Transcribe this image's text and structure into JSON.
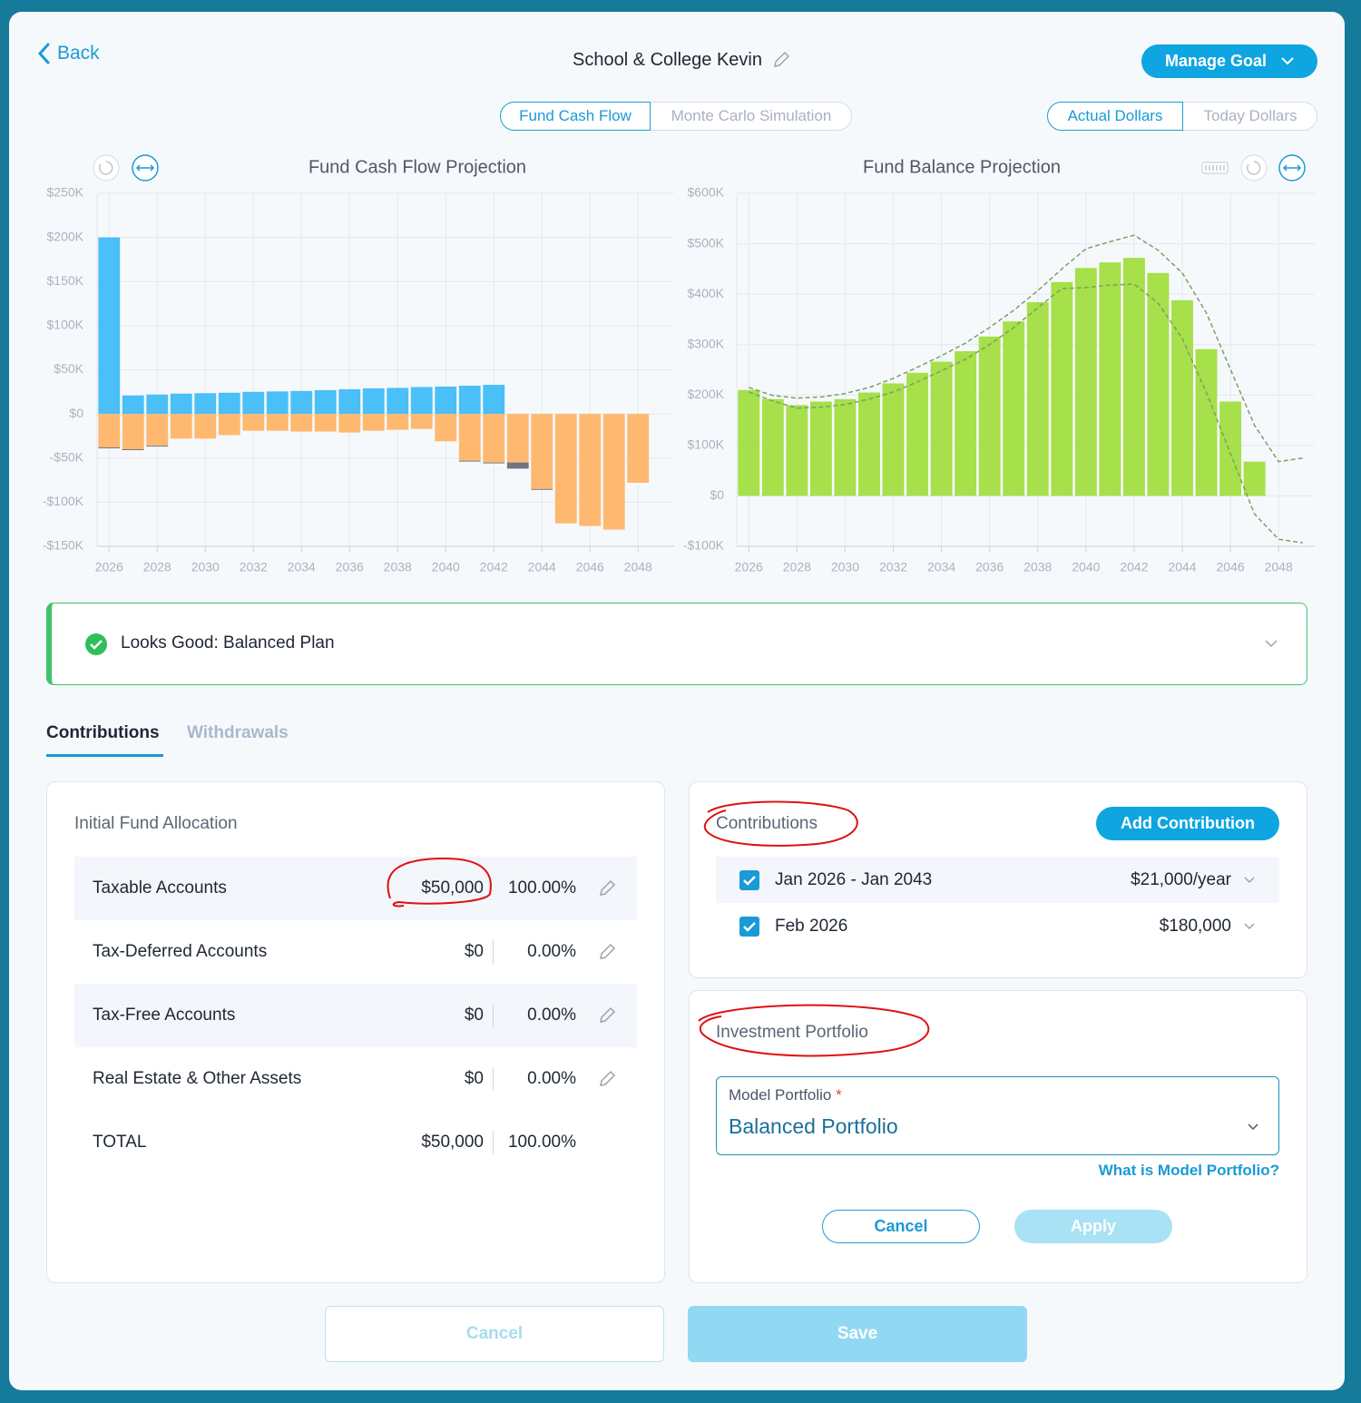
{
  "header": {
    "back": "Back",
    "title": "School & College Kevin",
    "manage": "Manage Goal"
  },
  "view_toggle": [
    "Fund Cash Flow",
    "Monte Carlo Simulation"
  ],
  "dollar_toggle": [
    "Actual Dollars",
    "Today Dollars"
  ],
  "chart_data": [
    {
      "type": "bar",
      "stacked": true,
      "title": "Fund Cash Flow Projection",
      "x": [
        2026,
        2027,
        2028,
        2029,
        2030,
        2031,
        2032,
        2033,
        2034,
        2035,
        2036,
        2037,
        2038,
        2039,
        2040,
        2041,
        2042,
        2043,
        2044,
        2045,
        2046,
        2047,
        2048
      ],
      "series": [
        {
          "color": "#4bbff7",
          "values": [
            200,
            21,
            22,
            23,
            23.5,
            24,
            25,
            25.5,
            26,
            27,
            28,
            29,
            29.5,
            30.5,
            31,
            32,
            33,
            0,
            0,
            0,
            0,
            0,
            0
          ]
        },
        {
          "color": "#ffb870",
          "values": [
            -38,
            -40,
            -36,
            -28,
            -28,
            -24,
            -19,
            -19,
            -20,
            -20,
            -21,
            -19,
            -18,
            -17,
            -31,
            -53,
            -55,
            -55,
            -85,
            -124,
            -127,
            -131,
            -78
          ]
        },
        {
          "color": "#6f7482",
          "values": [
            -1,
            -1,
            -1,
            0,
            0,
            0,
            0,
            0,
            0,
            0,
            0,
            0,
            0,
            0,
            0,
            -1,
            -1,
            -7,
            -1,
            0,
            0,
            0,
            0
          ]
        }
      ],
      "xlim": [
        2025.5,
        2049.5
      ],
      "xticks": [
        2026,
        2028,
        2030,
        2032,
        2034,
        2036,
        2038,
        2040,
        2042,
        2044,
        2046,
        2048
      ],
      "ylim": [
        -150,
        250
      ],
      "yticks": [
        {
          "value": -150,
          "label": "-$150K"
        },
        {
          "value": -100,
          "label": "-$100K"
        },
        {
          "value": -50,
          "label": "-$50K"
        },
        {
          "value": 0,
          "label": "$0"
        },
        {
          "value": 50,
          "label": "$50K"
        },
        {
          "value": 100,
          "label": "$100K"
        },
        {
          "value": 150,
          "label": "$150K"
        },
        {
          "value": 200,
          "label": "$200K"
        },
        {
          "value": 250,
          "label": "$250K"
        }
      ],
      "grid": true
    },
    {
      "type": "combo",
      "title": "Fund Balance Projection",
      "series": [
        {
          "type": "bar",
          "color": "#a6e04a",
          "x": [
            2026,
            2027,
            2028,
            2029,
            2030,
            2031,
            2032,
            2033,
            2034,
            2035,
            2036,
            2037,
            2038,
            2039,
            2040,
            2041,
            2042,
            2043,
            2044,
            2045,
            2046,
            2047
          ],
          "values": [
            210,
            192,
            180,
            187,
            192,
            205,
            223,
            244,
            266,
            287,
            316,
            346,
            384,
            424,
            452,
            463,
            472,
            442,
            388,
            291,
            187,
            68
          ]
        },
        {
          "type": "line",
          "dashed": true,
          "color": "#7f9f63",
          "x": [
            2026,
            2027,
            2028,
            2029,
            2030,
            2031,
            2032,
            2033,
            2034,
            2035,
            2036,
            2037,
            2038,
            2039,
            2040,
            2041,
            2042,
            2043,
            2044,
            2045,
            2046,
            2047,
            2048,
            2049
          ],
          "values": [
            215,
            199,
            194,
            196,
            203,
            215,
            233,
            255,
            278,
            303,
            334,
            368,
            407,
            450,
            490,
            504,
            517,
            487,
            442,
            363,
            251,
            140,
            68,
            75
          ]
        },
        {
          "type": "line",
          "dashed": true,
          "color": "#7f9f63",
          "x": [
            2026,
            2027,
            2028,
            2029,
            2030,
            2031,
            2032,
            2033,
            2034,
            2035,
            2036,
            2037,
            2038,
            2039,
            2040,
            2041,
            2042,
            2043,
            2044,
            2045,
            2046,
            2047,
            2048,
            2049
          ],
          "values": [
            206,
            188,
            174,
            176,
            181,
            192,
            206,
            226,
            248,
            271,
            300,
            334,
            373,
            411,
            413,
            418,
            420,
            382,
            312,
            205,
            84,
            -36,
            -86,
            -93
          ]
        }
      ],
      "xlim": [
        2025.5,
        2049.5
      ],
      "xticks": [
        2026,
        2028,
        2030,
        2032,
        2034,
        2036,
        2038,
        2040,
        2042,
        2044,
        2046,
        2048
      ],
      "ylim": [
        -100,
        600
      ],
      "yticks": [
        {
          "value": -100,
          "label": "-$100K"
        },
        {
          "value": 0,
          "label": "$0"
        },
        {
          "value": 100,
          "label": "$100K"
        },
        {
          "value": 200,
          "label": "$200K"
        },
        {
          "value": 300,
          "label": "$300K"
        },
        {
          "value": 400,
          "label": "$400K"
        },
        {
          "value": 500,
          "label": "$500K"
        },
        {
          "value": 600,
          "label": "$600K"
        }
      ],
      "grid": true
    }
  ],
  "status": "Looks Good: Balanced Plan",
  "tabs": [
    "Contributions",
    "Withdrawals"
  ],
  "allocation": {
    "title": "Initial Fund Allocation",
    "rows": [
      [
        "Taxable Accounts",
        "$50,000",
        "100.00%"
      ],
      [
        "Tax-Deferred Accounts",
        "$0",
        "0.00%"
      ],
      [
        "Tax-Free Accounts",
        "$0",
        "0.00%"
      ],
      [
        "Real Estate & Other Assets",
        "$0",
        "0.00%"
      ],
      [
        "TOTAL",
        "$50,000",
        "100.00%"
      ]
    ]
  },
  "contributions": {
    "title": "Contributions",
    "add": "Add Contribution",
    "items": [
      [
        "Jan 2026 - Jan 2043",
        "$21,000/year"
      ],
      [
        "Feb 2026",
        "$180,000"
      ]
    ]
  },
  "portfolio": {
    "title": "Investment Portfolio",
    "field_label": "Model Portfolio",
    "required": "*",
    "value": "Balanced Portfolio",
    "help": "What is Model Portfolio?",
    "cancel": "Cancel",
    "apply": "Apply"
  },
  "footer": {
    "cancel": "Cancel",
    "save": "Save"
  }
}
